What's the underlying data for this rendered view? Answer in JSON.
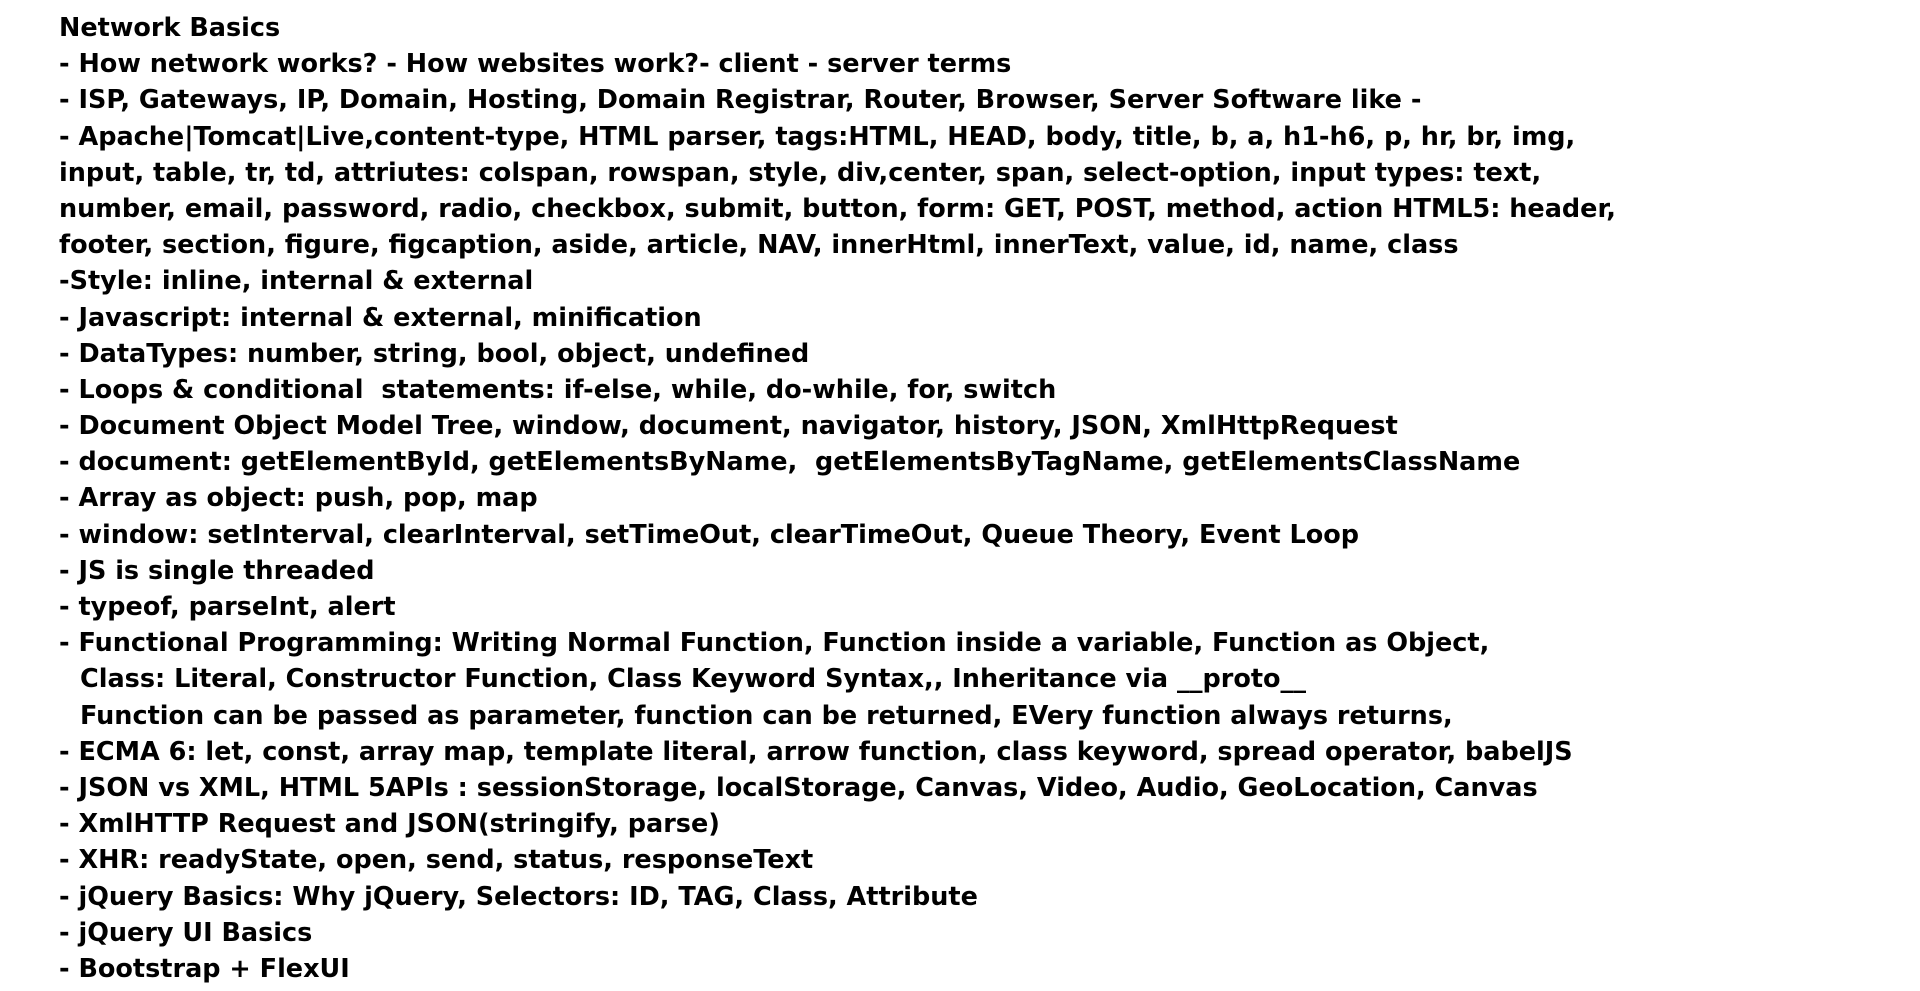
{
  "title": "Network Basics",
  "lines": [
    "- How network works? - How websites work?- client - server terms",
    "- ISP, Gateways, IP, Domain, Hosting, Domain Registrar, Router, Browser, Server Software like -",
    "- Apache|Tomcat|Live,content-type, HTML parser, tags:HTML, HEAD, body, title, b, a, h1-h6, p, hr, br, img,",
    "input, table, tr, td, attriutes: colspan, rowspan, style, div,center, span, select-option, input types: text,",
    "number, email, password, radio, checkbox, submit, button, form: GET, POST, method, action HTML5: header,",
    "footer, section, figure, figcaption, aside, article, NAV, innerHtml, innerText, value, id, name, class",
    "-Style: inline, internal & external",
    "- Javascript: internal & external, minification",
    "- DataTypes: number, string, bool, object, undefined",
    "- Loops & conditional  statements: if-else, while, do-while, for, switch",
    "- Document Object Model Tree, window, document, navigator, history, JSON, XmlHttpRequest",
    "- document: getElementById, getElementsByName,  getElementsByTagName, getElementsClassName",
    "- Array as object: push, pop, map",
    "- window: setInterval, clearInterval, setTimeOut, clearTimeOut, Queue Theory, Event Loop",
    "- JS is single threaded",
    "- typeof, parseInt, alert",
    "- Functional Programming: Writing Normal Function, Function inside a variable, Function as Object,",
    "Class: Literal, Constructor Function, Class Keyword Syntax,, Inheritance via __proto__",
    "Function can be passed as parameter, function can be returned, EVery function always returns,",
    "- ECMA 6: let, const, array map, template literal, arrow function, class keyword, spread operator, babelJS",
    "- JSON vs XML, HTML 5APIs : sessionStorage, localStorage, Canvas, Video, Audio, GeoLocation, Canvas",
    "- XmlHTTP Request and JSON(stringify, parse)",
    "- XHR: readyState, open, send, status, responseText",
    "- jQuery Basics: Why jQuery, Selectors: ID, TAG, Class, Attribute",
    "- jQuery UI Basics",
    "- Bootstrap + FlexUI"
  ]
}
